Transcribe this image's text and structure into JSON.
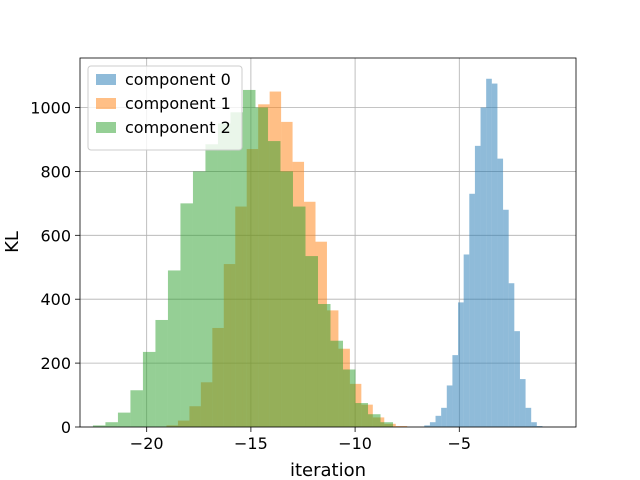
{
  "chart_data": {
    "type": "bar",
    "title": "",
    "xlabel": "iteration",
    "ylabel": "KL",
    "xlim": [
      -23.2,
      0.6
    ],
    "ylim": [
      0,
      1155
    ],
    "xticks": [
      -20,
      -15,
      -10,
      -5
    ],
    "xtick_labels": [
      "−20",
      "−15",
      "−10",
      "−5"
    ],
    "yticks": [
      0,
      200,
      400,
      600,
      800,
      1000
    ],
    "ytick_labels": [
      "0",
      "200",
      "400",
      "600",
      "800",
      "1000"
    ],
    "grid": true,
    "legend_position": "top-left",
    "bar_opacity": 0.5,
    "series": [
      {
        "name": "component 0",
        "color": "#1f77b4",
        "bin_edges": [
          -6.68,
          -6.41,
          -6.14,
          -5.87,
          -5.6,
          -5.33,
          -5.06,
          -4.79,
          -4.52,
          -4.25,
          -3.98,
          -3.71,
          -3.44,
          -3.17,
          -2.9,
          -2.63,
          -2.36,
          -2.09,
          -1.82,
          -1.55,
          -1.28,
          -1.01
        ],
        "counts": [
          5,
          15,
          35,
          60,
          130,
          225,
          390,
          540,
          730,
          880,
          1000,
          1090,
          1075,
          840,
          680,
          450,
          300,
          150,
          60,
          15,
          3
        ]
      },
      {
        "name": "component 1",
        "color": "#ff7f0e",
        "bin_edges": [
          -22.9,
          -22.35,
          -21.8,
          -21.25,
          -20.7,
          -20.15,
          -19.6,
          -19.05,
          -18.5,
          -17.95,
          -17.4,
          -16.85,
          -16.3,
          -15.75,
          -15.2,
          -14.65,
          -14.1,
          -13.55,
          -13.0,
          -12.45,
          -11.9,
          -11.35,
          -10.8,
          -10.25,
          -9.7,
          -9.15,
          -8.6,
          -8.05,
          -7.5
        ],
        "counts": [
          0,
          0,
          0,
          0,
          0,
          0,
          0,
          5,
          20,
          65,
          140,
          310,
          510,
          690,
          870,
          1010,
          1050,
          955,
          830,
          705,
          580,
          365,
          245,
          135,
          70,
          30,
          10,
          3
        ]
      },
      {
        "name": "component 2",
        "color": "#2ca02c",
        "bin_edges": [
          -22.58,
          -21.98,
          -21.38,
          -20.78,
          -20.18,
          -19.58,
          -18.98,
          -18.38,
          -17.78,
          -17.18,
          -16.58,
          -15.98,
          -15.38,
          -14.78,
          -14.18,
          -13.58,
          -12.98,
          -12.38,
          -11.78,
          -11.18,
          -10.58,
          -9.98,
          -9.38,
          -8.78,
          -8.18
        ],
        "counts": [
          5,
          15,
          45,
          115,
          235,
          335,
          490,
          700,
          800,
          885,
          950,
          985,
          1055,
          1000,
          895,
          800,
          690,
          535,
          385,
          270,
          180,
          75,
          40,
          15
        ]
      }
    ]
  }
}
